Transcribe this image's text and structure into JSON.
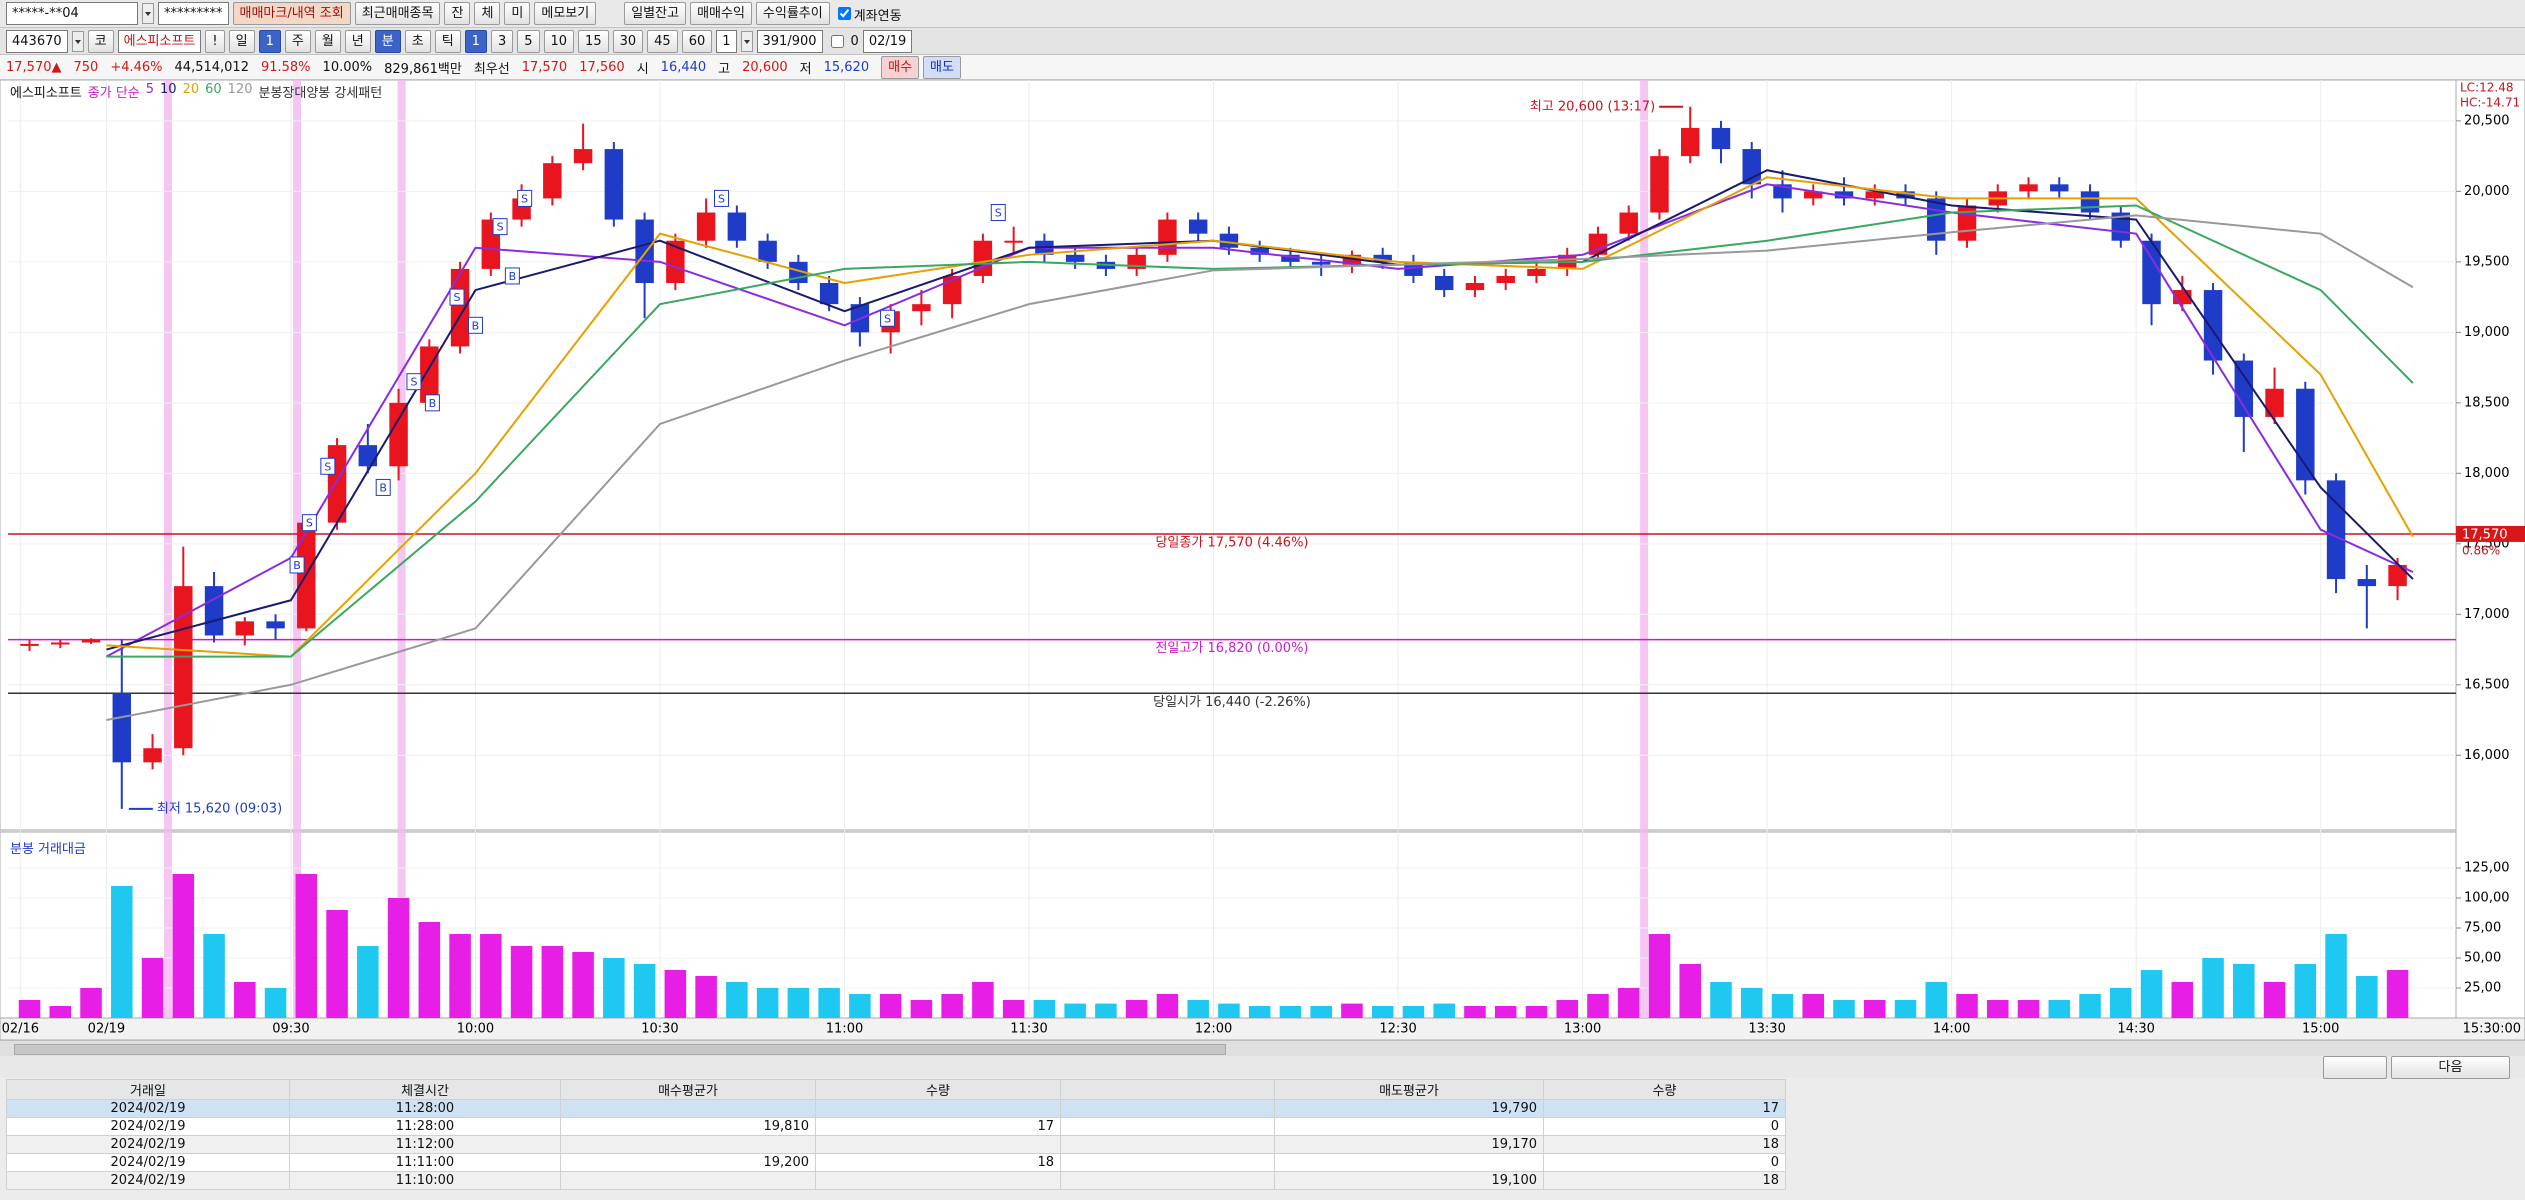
{
  "toolbar": {
    "account": "*****-**04",
    "password": "*********",
    "buttons": [
      "매매마크/내역 조회",
      "최근매매종목",
      "잔",
      "체",
      "미",
      "메모보기",
      "일별잔고",
      "매매수익",
      "수익률추이"
    ],
    "checkbox": "계좌연동"
  },
  "code_bar": {
    "code": "443670",
    "market": "코",
    "name": "에스피소프트",
    "alert": "!",
    "periods": [
      "일",
      "1",
      "주",
      "월",
      "년",
      "분",
      "초",
      "틱"
    ],
    "intervals": [
      "1",
      "3",
      "5",
      "10",
      "15",
      "30",
      "45",
      "60"
    ],
    "unit": "1",
    "count": "391/900",
    "offset": "0",
    "date": "02/19"
  },
  "quote_bar": {
    "price": "17,570▲",
    "change": "750",
    "rate": "+4.46%",
    "volume": "44,514,012",
    "vol_ratio": "91.58%",
    "turnover": "10.00%",
    "amount": "829,861백만",
    "best_label": "최우선",
    "ask": "17,570",
    "bid": "17,560",
    "open_label": "시",
    "open": "16,440",
    "high_label": "고",
    "high": "20,600",
    "low_label": "저",
    "low": "15,620",
    "buy": "매수",
    "sell": "매도"
  },
  "chart_data": {
    "type": "candlestick",
    "title": "에스피소프트",
    "ma_label": "종가 단순",
    "pattern_label": "분봉장대양봉 강세패턴",
    "x": [
      -15,
      -10,
      -5,
      0,
      5,
      10,
      15,
      20,
      25,
      30,
      35,
      40,
      45,
      50,
      55,
      60,
      65,
      70,
      75,
      80,
      85,
      90,
      95,
      100,
      105,
      110,
      115,
      120,
      125,
      130,
      135,
      140,
      145,
      150,
      155,
      160,
      165,
      170,
      175,
      180,
      185,
      190,
      195,
      200,
      205,
      210,
      215,
      220,
      225,
      230,
      235,
      240,
      245,
      250,
      255,
      260,
      265,
      270,
      275,
      280,
      285,
      290,
      295,
      300,
      305,
      310,
      315,
      320,
      325,
      330,
      335,
      340,
      345,
      350,
      355,
      360,
      365,
      370
    ],
    "open": [
      16780,
      16790,
      16800,
      16440,
      15950,
      16050,
      17200,
      16850,
      16950,
      16900,
      17650,
      18200,
      18050,
      18500,
      18900,
      19450,
      19800,
      19950,
      20200,
      20300,
      19800,
      19350,
      19650,
      19850,
      19650,
      19500,
      19350,
      19200,
      19000,
      19150,
      19200,
      19400,
      19650,
      19650,
      19550,
      19500,
      19450,
      19550,
      19800,
      19700,
      19600,
      19550,
      19500,
      19480,
      19550,
      19500,
      19400,
      19300,
      19350,
      19400,
      19450,
      19550,
      19700,
      19850,
      20250,
      20450,
      20300,
      20050,
      19950,
      20000,
      19950,
      20000,
      19950,
      19650,
      19900,
      20000,
      20050,
      20000,
      19850,
      19650,
      19200,
      19300,
      18800,
      18400,
      18600,
      17950,
      17250,
      17200
    ],
    "high": [
      16820,
      16820,
      16830,
      16820,
      16150,
      17480,
      17300,
      16980,
      17000,
      17700,
      18250,
      18350,
      18600,
      18950,
      19500,
      19850,
      20050,
      20250,
      20480,
      20350,
      19850,
      19700,
      19950,
      19900,
      19700,
      19550,
      19400,
      19250,
      19200,
      19300,
      19450,
      19700,
      19750,
      19700,
      19600,
      19550,
      19600,
      19850,
      19850,
      19750,
      19650,
      19600,
      19550,
      19580,
      19600,
      19550,
      19450,
      19400,
      19450,
      19500,
      19600,
      19750,
      19900,
      20300,
      20600,
      20500,
      20350,
      20150,
      20050,
      20100,
      20050,
      20050,
      20000,
      19950,
      20050,
      20100,
      20100,
      20050,
      19900,
      19700,
      19400,
      19350,
      18850,
      18750,
      18650,
      18000,
      17350,
      17400
    ],
    "low": [
      16740,
      16760,
      16790,
      15620,
      15900,
      16000,
      16800,
      16780,
      16820,
      16880,
      17600,
      18000,
      17950,
      18450,
      18850,
      19400,
      19750,
      19900,
      20150,
      19750,
      19100,
      19300,
      19600,
      19600,
      19450,
      19300,
      19150,
      18900,
      18850,
      19050,
      19100,
      19350,
      19550,
      19500,
      19450,
      19400,
      19400,
      19500,
      19650,
      19550,
      19500,
      19450,
      19400,
      19420,
      19450,
      19350,
      19250,
      19250,
      19300,
      19350,
      19400,
      19500,
      19650,
      19800,
      20200,
      20200,
      19950,
      19850,
      19900,
      19900,
      19900,
      19900,
      19550,
      19600,
      19850,
      19950,
      19950,
      19800,
      19600,
      19050,
      19150,
      18700,
      18150,
      18350,
      17850,
      17150,
      16900,
      17100
    ],
    "close": [
      16790,
      16800,
      16820,
      15950,
      16050,
      17200,
      16850,
      16950,
      16900,
      17650,
      18200,
      18050,
      18500,
      18900,
      19450,
      19800,
      19950,
      20200,
      20300,
      19800,
      19350,
      19650,
      19850,
      19650,
      19500,
      19350,
      19200,
      19000,
      19150,
      19200,
      19400,
      19650,
      19650,
      19550,
      19500,
      19450,
      19550,
      19800,
      19700,
      19600,
      19550,
      19500,
      19480,
      19550,
      19500,
      19400,
      19300,
      19350,
      19400,
      19450,
      19550,
      19700,
      19850,
      20250,
      20450,
      20300,
      20050,
      19950,
      20000,
      19950,
      20000,
      19950,
      19650,
      19900,
      20000,
      20050,
      20000,
      19850,
      19650,
      19200,
      19300,
      18800,
      18400,
      18600,
      17950,
      17250,
      17200,
      17350
    ],
    "up_color": "#e8141e",
    "down_color": "#1e3cc8",
    "grid": true,
    "xlim": [
      -16,
      382
    ],
    "xticks": [
      {
        "value": -14,
        "label": "02/16"
      },
      {
        "value": 0,
        "label": "02/19"
      },
      {
        "value": 30,
        "label": "09:30"
      },
      {
        "value": 60,
        "label": "10:00"
      },
      {
        "value": 90,
        "label": "10:30"
      },
      {
        "value": 120,
        "label": "11:00"
      },
      {
        "value": 150,
        "label": "11:30"
      },
      {
        "value": 180,
        "label": "12:00"
      },
      {
        "value": 210,
        "label": "12:30"
      },
      {
        "value": 240,
        "label": "13:00"
      },
      {
        "value": 270,
        "label": "13:30"
      },
      {
        "value": 300,
        "label": "14:00"
      },
      {
        "value": 330,
        "label": "14:30"
      },
      {
        "value": 360,
        "label": "15:00"
      }
    ],
    "x_end_label": "15:30:00",
    "ylim": [
      15470,
      20790
    ],
    "yticks": [
      {
        "value": 16000,
        "label": "16,000"
      },
      {
        "value": 16500,
        "label": "16,500"
      },
      {
        "value": 17000,
        "label": "17,000"
      },
      {
        "value": 17500,
        "label": "17,500"
      },
      {
        "value": 18000,
        "label": "18,000"
      },
      {
        "value": 18500,
        "label": "18,500"
      },
      {
        "value": 19000,
        "label": "19,000"
      },
      {
        "value": 19500,
        "label": "19,500"
      },
      {
        "value": 20000,
        "label": "20,000"
      },
      {
        "value": 20500,
        "label": "20,500"
      }
    ],
    "ma_x": [
      0,
      30,
      60,
      90,
      120,
      150,
      180,
      210,
      240,
      270,
      300,
      330,
      360,
      375
    ],
    "ma_series": [
      {
        "name": "5",
        "color": "#8a2be2",
        "values": [
          16700,
          17400,
          19600,
          19500,
          19050,
          19600,
          19600,
          19450,
          19550,
          20050,
          19850,
          19700,
          17600,
          17300
        ]
      },
      {
        "name": "10",
        "color": "#1a1a6e",
        "values": [
          16750,
          17100,
          19300,
          19650,
          19150,
          19600,
          19650,
          19480,
          19500,
          20150,
          19900,
          19800,
          17900,
          17250
        ]
      },
      {
        "name": "20",
        "color": "#e6a000",
        "values": [
          16780,
          16700,
          18000,
          19700,
          19350,
          19550,
          19650,
          19500,
          19450,
          20100,
          19950,
          19950,
          18700,
          17550
        ]
      },
      {
        "name": "60",
        "color": "#3aa860",
        "values": [
          16700,
          16700,
          17800,
          19200,
          19450,
          19500,
          19450,
          19480,
          19500,
          19650,
          19850,
          19900,
          19300,
          18640
        ]
      },
      {
        "name": "120",
        "color": "#999999",
        "values": [
          16250,
          16500,
          16900,
          18350,
          18800,
          19200,
          19440,
          19480,
          19520,
          19580,
          19710,
          19830,
          19700,
          19320
        ]
      }
    ],
    "reference_lines": [
      {
        "value": 17570,
        "label": "당일종가 17,570 (4.46%)",
        "color": "#c8141e"
      },
      {
        "value": 16820,
        "label": "전일고가 16,820 (0.00%)",
        "color": "#c81ec8"
      },
      {
        "value": 16440,
        "label": "당일시가 16,440 (-2.26%)",
        "color": "#333333"
      }
    ],
    "extremes": [
      {
        "x": 257,
        "value": 20600,
        "label": "최고 20,600 (13:17)",
        "color": "#c8141e"
      },
      {
        "x": 3,
        "value": 15620,
        "label": "최저 15,620 (09:03)",
        "color": "#1e3cc8"
      }
    ],
    "pattern_x": [
      10,
      31,
      48,
      250
    ],
    "pattern_color": "#f4b8f0",
    "signals": [
      {
        "x": 31,
        "value": 17350,
        "label": "B"
      },
      {
        "x": 33,
        "value": 17650,
        "label": "S"
      },
      {
        "x": 36,
        "value": 18050,
        "label": "S"
      },
      {
        "x": 45,
        "value": 17900,
        "label": "B"
      },
      {
        "x": 50,
        "value": 18650,
        "label": "S"
      },
      {
        "x": 53,
        "value": 18500,
        "label": "B"
      },
      {
        "x": 57,
        "value": 19250,
        "label": "S"
      },
      {
        "x": 60,
        "value": 19050,
        "label": "B"
      },
      {
        "x": 64,
        "value": 19750,
        "label": "S"
      },
      {
        "x": 66,
        "value": 19400,
        "label": "B"
      },
      {
        "x": 68,
        "value": 19950,
        "label": "S"
      },
      {
        "x": 100,
        "value": 19950,
        "label": "S"
      },
      {
        "x": 127,
        "value": 19100,
        "label": "S"
      },
      {
        "x": 145,
        "value": 19850,
        "label": "S"
      }
    ],
    "scale_info": [
      "LC:12.48",
      "HC:-14.71"
    ],
    "last_price": {
      "value": 17570,
      "label": "17,570"
    },
    "last_rate": "0.86%",
    "volume": {
      "title": "분봉 거래대금",
      "up_color": "#e61ee6",
      "down_color": "#1ec8f0",
      "ylim": [
        0,
        15500
      ],
      "yticks": [
        {
          "value": 2500,
          "label": "25,00"
        },
        {
          "value": 5000,
          "label": "50,00"
        },
        {
          "value": 7500,
          "label": "75,00"
        },
        {
          "value": 10000,
          "label": "100,00"
        },
        {
          "value": 12500,
          "label": "125,00"
        }
      ],
      "values": [
        1500,
        1000,
        2500,
        11000,
        5000,
        12000,
        7000,
        3000,
        2500,
        12000,
        9000,
        6000,
        10000,
        8000,
        7000,
        7000,
        6000,
        6000,
        5500,
        5000,
        4500,
        4000,
        3500,
        3000,
        2500,
        2500,
        2500,
        2000,
        2000,
        1500,
        2000,
        3000,
        1500,
        1500,
        1200,
        1200,
        1500,
        2000,
        1500,
        1200,
        1000,
        1000,
        1000,
        1200,
        1000,
        1000,
        1200,
        1000,
        1000,
        1000,
        1500,
        2000,
        2500,
        7000,
        4500,
        3000,
        2500,
        2000,
        2000,
        1500,
        1500,
        1500,
        3000,
        2000,
        1500,
        1500,
        1500,
        2000,
        2500,
        4000,
        3000,
        5000,
        4500,
        3000,
        4500,
        7000,
        3500,
        4000
      ]
    }
  },
  "nav": {
    "next": "다음"
  },
  "table": {
    "headers": [
      "거래일",
      "체결시간",
      "매수평균가",
      "수량",
      null,
      "매도평균가",
      "수량"
    ],
    "rows": [
      [
        "2024/02/19",
        "11:28:00",
        null,
        null,
        null,
        "19,790",
        "17"
      ],
      [
        "2024/02/19",
        "11:28:00",
        "19,810",
        "17",
        null,
        null,
        "0"
      ],
      [
        "2024/02/19",
        "11:12:00",
        null,
        null,
        null,
        "19,170",
        "18"
      ],
      [
        "2024/02/19",
        "11:11:00",
        "19,200",
        "18",
        null,
        null,
        "0"
      ],
      [
        "2024/02/19",
        "11:10:00",
        null,
        null,
        null,
        "19,100",
        "18"
      ]
    ]
  }
}
